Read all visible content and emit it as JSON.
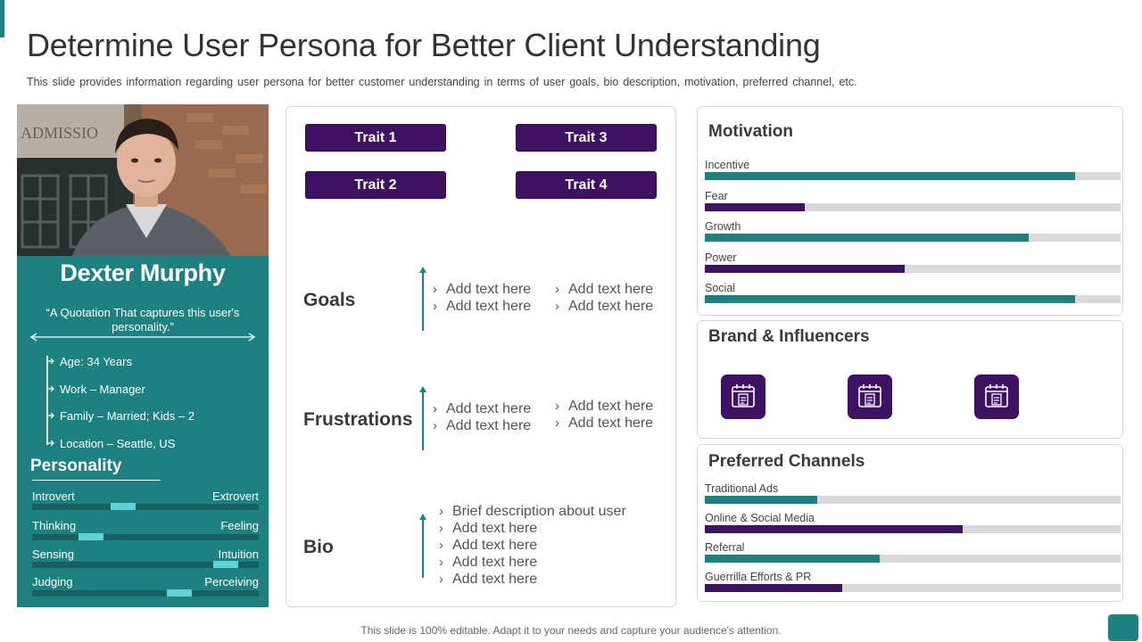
{
  "header": {
    "title": "Determine User Persona for Better Client Understanding",
    "subtitle": "This slide provides information regarding user persona for better customer understanding in terms of user goals, bio description, motivation, preferred channel, etc."
  },
  "profile": {
    "photo_text": "ADMISSIO",
    "name": "Dexter Murphy",
    "quote": "“A Quotation That captures this user's personality.”",
    "facts": [
      "Age: 34 Years",
      "Work – Manager",
      "Family – Married; Kids – 2",
      "Location – Seattle, US"
    ],
    "personality_title": "Personality",
    "personality": [
      {
        "left": "Introvert",
        "right": "Extrovert",
        "value": 0.39
      },
      {
        "left": "Thinking",
        "right": "Feeling",
        "value": 0.23
      },
      {
        "left": "Sensing",
        "right": "Intuition",
        "value": 0.9
      },
      {
        "left": "Judging",
        "right": "Perceiving",
        "value": 0.67
      }
    ]
  },
  "traits": [
    "Trait 1",
    "Trait 3",
    "Trait 2",
    "Trait 4"
  ],
  "sections": {
    "goals": {
      "label": "Goals",
      "col1": [
        "Add text here",
        "Add text here"
      ],
      "col2": [
        "Add text here",
        "Add text here"
      ]
    },
    "frustrations": {
      "label": "Frustrations",
      "col1": [
        "Add text here",
        "Add text here"
      ],
      "col2": [
        "Add text here",
        "Add text here"
      ]
    },
    "bio": {
      "label": "Bio",
      "items": [
        "Brief description about user",
        "Add text here",
        "Add text here",
        "Add text here",
        "Add text here"
      ]
    }
  },
  "motivation": {
    "title": "Motivation",
    "bars": [
      {
        "label": "Incentive",
        "value": 0.89,
        "color": "#1e8181"
      },
      {
        "label": "Fear",
        "value": 0.24,
        "color": "#3e1163"
      },
      {
        "label": "Growth",
        "value": 0.78,
        "color": "#1e8181"
      },
      {
        "label": "Power",
        "value": 0.48,
        "color": "#3e1163"
      },
      {
        "label": "Social",
        "value": 0.89,
        "color": "#1e8181"
      }
    ]
  },
  "brand": {
    "title": "Brand & Influencers",
    "icons": [
      "calendar-checklist-icon",
      "calendar-checklist-icon",
      "calendar-checklist-icon"
    ]
  },
  "channels": {
    "title": "Preferred Channels",
    "bars": [
      {
        "label": "Traditional  Ads",
        "value": 0.27,
        "color": "#1e8181"
      },
      {
        "label": "Online  & Social Media",
        "value": 0.62,
        "color": "#3e1163"
      },
      {
        "label": "Referral",
        "value": 0.42,
        "color": "#1e8181"
      },
      {
        "label": "Guerrilla  Efforts  & PR",
        "value": 0.33,
        "color": "#3e1163"
      }
    ]
  },
  "footer": "This slide is 100% editable. Adapt it to your needs and capture your audience's attention.",
  "colors": {
    "teal": "#1e8181",
    "purple": "#3e1163",
    "track": "#d9d9d9"
  }
}
